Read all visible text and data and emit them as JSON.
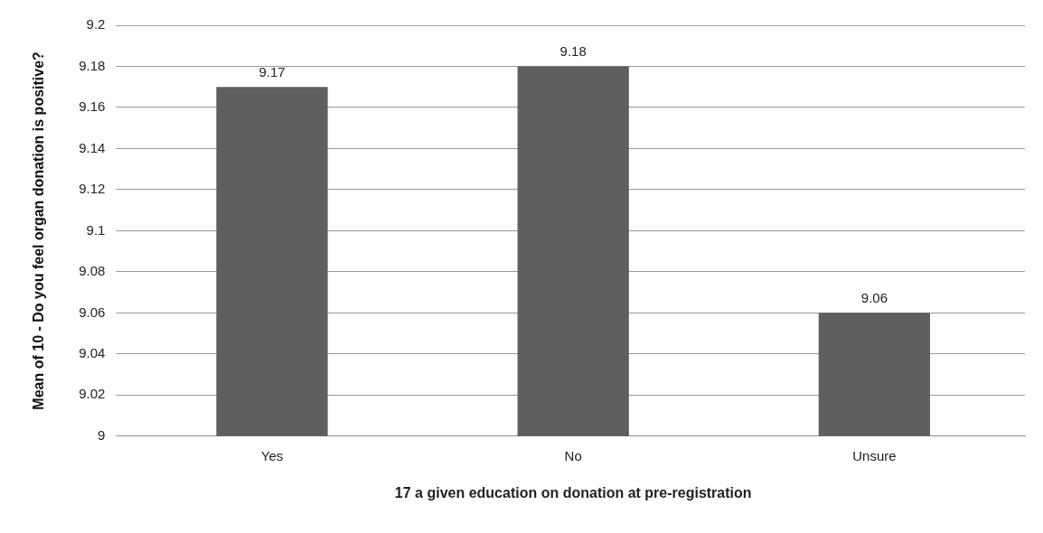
{
  "chart_data": {
    "type": "bar",
    "xlabel": "17 a given education on donation at pre-registration",
    "ylabel": "Mean of 10 - Do you feel organ donation is positive?",
    "categories": [
      "Yes",
      "No",
      "Unsure"
    ],
    "values": [
      9.17,
      9.18,
      9.06
    ],
    "color": "#5f5f5f",
    "ylim": [
      9,
      9.2
    ],
    "yticks": [
      9,
      9.02,
      9.04,
      9.06,
      9.08,
      9.1,
      9.12,
      9.14,
      9.16,
      9.18,
      9.2
    ],
    "grid": "y",
    "data_labels": true,
    "legend": false
  }
}
